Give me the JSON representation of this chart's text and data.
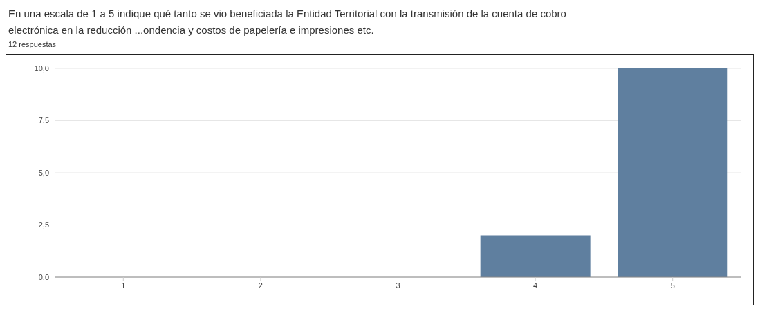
{
  "chart_data": {
    "type": "bar",
    "title": "En una escala de 1 a 5 indique qué tanto se vio beneficiada la Entidad Territorial con la transmisión de la cuenta de cobro electrónica en la reducción ...ondencia y costos de papelería e impresiones etc.",
    "subtitle": "12 respuestas",
    "categories": [
      "1",
      "2",
      "3",
      "4",
      "5"
    ],
    "values": [
      0,
      0,
      0,
      2,
      10
    ],
    "color": "#5f7f9f",
    "ylim": [
      0,
      10
    ],
    "yticks": [
      {
        "value": 0,
        "label": "0,0"
      },
      {
        "value": 2.5,
        "label": "2,5"
      },
      {
        "value": 5,
        "label": "5,0"
      },
      {
        "value": 7.5,
        "label": "7,5"
      },
      {
        "value": 10,
        "label": "10,0"
      }
    ],
    "grid": "y"
  }
}
